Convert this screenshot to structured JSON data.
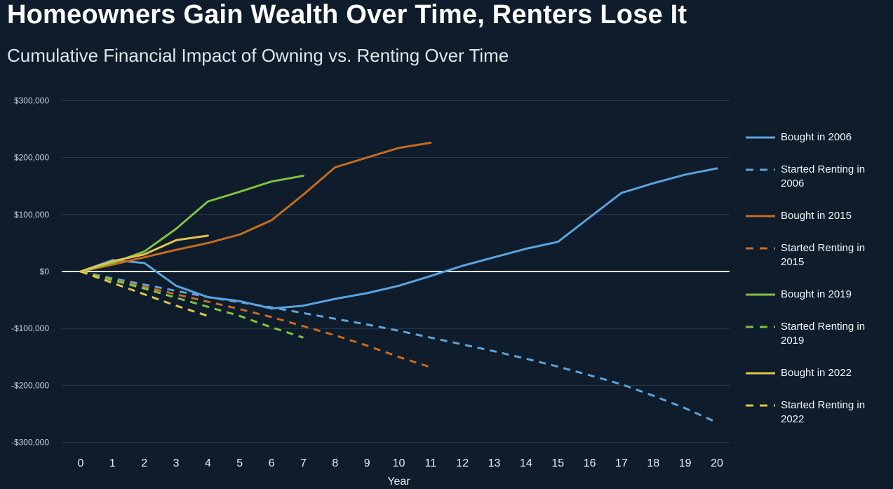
{
  "colors": {
    "background": "#0e1c2b",
    "grid": "#2d3c4a",
    "zero_line": "#ffffff",
    "y_tick_text": "#c9d1d8",
    "x_tick_text": "#e9eef3",
    "title_text": "#ffffff",
    "subtitle_text": "#dfe5ea",
    "blue": "#5BA3DC",
    "orange": "#C76B1F",
    "green": "#7FC241",
    "yellow": "#E5C34A"
  },
  "chart_data": {
    "type": "line",
    "title": "Homeowners Gain Wealth Over Time, Renters Lose It",
    "subtitle": "Cumulative Financial Impact of Owning vs. Renting Over Time",
    "xlabel": "Year",
    "ylabel": "",
    "xlim": [
      0,
      20
    ],
    "ylim": [
      -300000,
      300000
    ],
    "grid": true,
    "legend_position": "right",
    "x_ticks": [
      0,
      1,
      2,
      3,
      4,
      5,
      6,
      7,
      8,
      9,
      10,
      11,
      12,
      13,
      14,
      15,
      16,
      17,
      18,
      19,
      20
    ],
    "y_ticks": [
      {
        "value": 300000,
        "label": "$300,000"
      },
      {
        "value": 200000,
        "label": "$200,000"
      },
      {
        "value": 100000,
        "label": "$100,000"
      },
      {
        "value": 0,
        "label": "$0"
      },
      {
        "value": -100000,
        "label": "-$100,000"
      },
      {
        "value": -200000,
        "label": "-$200,000"
      },
      {
        "value": -300000,
        "label": "-$300,000"
      }
    ],
    "series": [
      {
        "id": "bought-2006",
        "name": "Bought in 2006",
        "color": "#5BA3DC",
        "style": "solid",
        "x": [
          0,
          1,
          2,
          3,
          4,
          5,
          6,
          7,
          8,
          9,
          10,
          11,
          12,
          13,
          14,
          15,
          16,
          17,
          18,
          19,
          20
        ],
        "values": [
          0,
          20000,
          15000,
          -25000,
          -45000,
          -52000,
          -65000,
          -60000,
          -48000,
          -38000,
          -25000,
          -8000,
          10000,
          25000,
          40000,
          52000,
          95000,
          138000,
          155000,
          170000,
          181000
        ]
      },
      {
        "id": "rent-2006",
        "name": "Started Renting in 2006",
        "color": "#5BA3DC",
        "style": "dashed",
        "x": [
          0,
          1,
          2,
          3,
          4,
          5,
          6,
          7,
          8,
          9,
          10,
          11,
          12,
          13,
          14,
          15,
          16,
          17,
          18,
          19,
          20
        ],
        "values": [
          0,
          -12000,
          -23000,
          -34000,
          -45000,
          -54000,
          -63000,
          -73000,
          -83000,
          -93000,
          -104000,
          -116000,
          -128000,
          -140000,
          -153000,
          -167000,
          -182000,
          -198000,
          -218000,
          -240000,
          -265000
        ]
      },
      {
        "id": "bought-2015",
        "name": "Bought in 2015",
        "color": "#C76B1F",
        "style": "solid",
        "x": [
          0,
          1,
          2,
          3,
          4,
          5,
          6,
          7,
          8,
          9,
          10,
          11
        ],
        "values": [
          0,
          12000,
          25000,
          38000,
          50000,
          65000,
          90000,
          135000,
          183000,
          200000,
          217000,
          226000
        ]
      },
      {
        "id": "rent-2015",
        "name": "Started Renting in 2015",
        "color": "#C76B1F",
        "style": "dashed",
        "x": [
          0,
          1,
          2,
          3,
          4,
          5,
          6,
          7,
          8,
          9,
          10,
          11
        ],
        "values": [
          0,
          -14000,
          -27000,
          -40000,
          -53000,
          -66000,
          -80000,
          -96000,
          -112000,
          -130000,
          -150000,
          -168000
        ]
      },
      {
        "id": "bought-2019",
        "name": "Bought in 2019",
        "color": "#7FC241",
        "style": "solid",
        "x": [
          0,
          1,
          2,
          3,
          4,
          5,
          6,
          7
        ],
        "values": [
          0,
          15000,
          35000,
          75000,
          123000,
          140000,
          158000,
          168000
        ]
      },
      {
        "id": "rent-2019",
        "name": "Started Renting in 2019",
        "color": "#7FC241",
        "style": "dashed",
        "x": [
          0,
          1,
          2,
          3,
          4,
          5,
          6,
          7
        ],
        "values": [
          0,
          -15000,
          -30000,
          -46000,
          -62000,
          -78000,
          -98000,
          -116000
        ]
      },
      {
        "id": "bought-2022",
        "name": "Bought in 2022",
        "color": "#E5C34A",
        "style": "solid",
        "x": [
          0,
          1,
          2,
          3,
          4
        ],
        "values": [
          0,
          18000,
          30000,
          55000,
          63000
        ]
      },
      {
        "id": "rent-2022",
        "name": "Started Renting in 2022",
        "color": "#E5C34A",
        "style": "dashed",
        "x": [
          0,
          1,
          2,
          3,
          4
        ],
        "values": [
          0,
          -20000,
          -40000,
          -60000,
          -78000
        ]
      }
    ]
  }
}
